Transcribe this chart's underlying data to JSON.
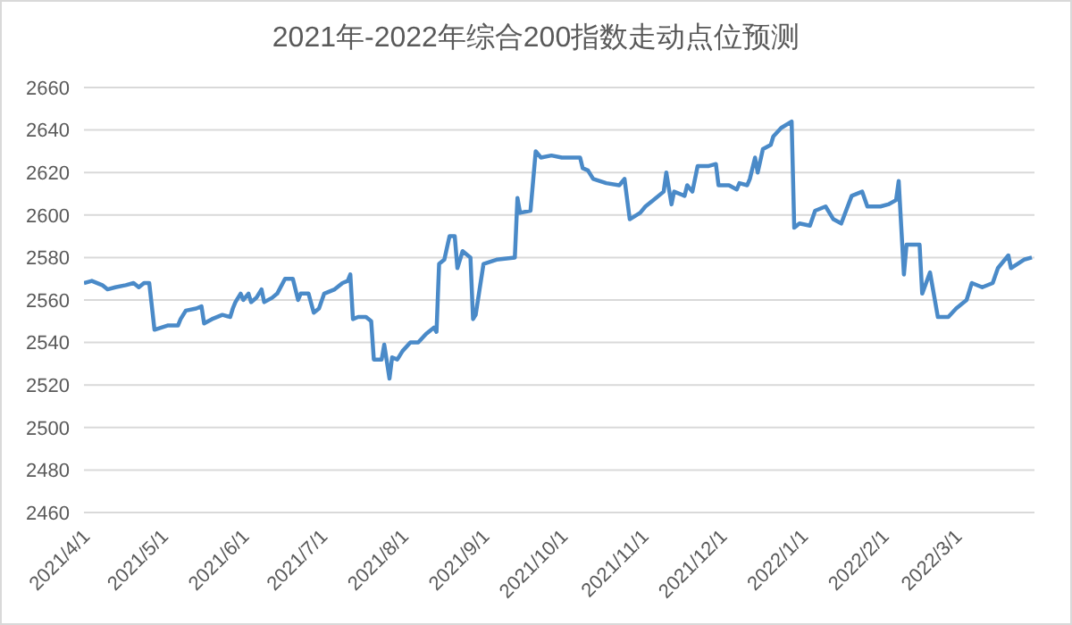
{
  "chart_data": {
    "type": "line",
    "title": "2021年-2022年综合200指数走动点位预测",
    "grid": "y",
    "xlim": [
      "2021-04-01",
      "2022-03-31"
    ],
    "xticks": [
      {
        "value": "2021-04-01",
        "label": "2021/4/1"
      },
      {
        "value": "2021-05-01",
        "label": "2021/5/1"
      },
      {
        "value": "2021-06-01",
        "label": "2021/6/1"
      },
      {
        "value": "2021-07-01",
        "label": "2021/7/1"
      },
      {
        "value": "2021-08-01",
        "label": "2021/8/1"
      },
      {
        "value": "2021-09-01",
        "label": "2021/9/1"
      },
      {
        "value": "2021-10-01",
        "label": "2021/10/1"
      },
      {
        "value": "2021-11-01",
        "label": "2021/11/1"
      },
      {
        "value": "2021-12-01",
        "label": "2021/12/1"
      },
      {
        "value": "2022-01-01",
        "label": "2022/1/1"
      },
      {
        "value": "2022-02-01",
        "label": "2022/2/1"
      },
      {
        "value": "2022-03-01",
        "label": "2022/3/1"
      }
    ],
    "ylim": [
      2460,
      2660
    ],
    "yticks": [
      2460,
      2480,
      2500,
      2520,
      2540,
      2560,
      2580,
      2600,
      2620,
      2640,
      2660
    ],
    "x": [
      "2021-04-01",
      "2021-04-04",
      "2021-04-08",
      "2021-04-10",
      "2021-04-13",
      "2021-04-17",
      "2021-04-20",
      "2021-04-22",
      "2021-04-24",
      "2021-04-26",
      "2021-04-28",
      "2021-05-03",
      "2021-05-07",
      "2021-05-08",
      "2021-05-10",
      "2021-05-14",
      "2021-05-16",
      "2021-05-17",
      "2021-05-20",
      "2021-05-24",
      "2021-05-27",
      "2021-05-28",
      "2021-05-29",
      "2021-05-31",
      "2021-06-01",
      "2021-06-03",
      "2021-06-04",
      "2021-06-06",
      "2021-06-08",
      "2021-06-09",
      "2021-06-12",
      "2021-06-14",
      "2021-06-17",
      "2021-06-20",
      "2021-06-22",
      "2021-06-23",
      "2021-06-26",
      "2021-06-28",
      "2021-06-30",
      "2021-07-02",
      "2021-07-06",
      "2021-07-09",
      "2021-07-11",
      "2021-07-12",
      "2021-07-13",
      "2021-07-15",
      "2021-07-18",
      "2021-07-20",
      "2021-07-21",
      "2021-07-24",
      "2021-07-25",
      "2021-07-27",
      "2021-07-28",
      "2021-07-30",
      "2021-08-01",
      "2021-08-04",
      "2021-08-07",
      "2021-08-10",
      "2021-08-13",
      "2021-08-14",
      "2021-08-15",
      "2021-08-17",
      "2021-08-19",
      "2021-08-21",
      "2021-08-22",
      "2021-08-24",
      "2021-08-27",
      "2021-08-28",
      "2021-08-29",
      "2021-09-01",
      "2021-09-06",
      "2021-09-13",
      "2021-09-14",
      "2021-09-15",
      "2021-09-19",
      "2021-09-21",
      "2021-09-23",
      "2021-09-27",
      "2021-10-01",
      "2021-10-08",
      "2021-10-09",
      "2021-10-11",
      "2021-10-13",
      "2021-10-18",
      "2021-10-23",
      "2021-10-25",
      "2021-10-27",
      "2021-10-31",
      "2021-11-02",
      "2021-11-05",
      "2021-11-09",
      "2021-11-10",
      "2021-11-12",
      "2021-11-13",
      "2021-11-17",
      "2021-11-18",
      "2021-11-20",
      "2021-11-22",
      "2021-11-26",
      "2021-11-29",
      "2021-11-30",
      "2021-12-04",
      "2021-12-07",
      "2021-12-08",
      "2021-12-11",
      "2021-12-12",
      "2021-12-14",
      "2021-12-15",
      "2021-12-17",
      "2021-12-20",
      "2021-12-21",
      "2021-12-24",
      "2021-12-28",
      "2021-12-29",
      "2021-12-31",
      "2022-01-04",
      "2022-01-06",
      "2022-01-10",
      "2022-01-13",
      "2022-01-16",
      "2022-01-20",
      "2022-01-24",
      "2022-01-26",
      "2022-01-31",
      "2022-02-03",
      "2022-02-06",
      "2022-02-07",
      "2022-02-09",
      "2022-02-10",
      "2022-02-15",
      "2022-02-16",
      "2022-02-19",
      "2022-02-22",
      "2022-02-26",
      "2022-03-01",
      "2022-03-05",
      "2022-03-07",
      "2022-03-11",
      "2022-03-15",
      "2022-03-17",
      "2022-03-21",
      "2022-03-22",
      "2022-03-27",
      "2022-03-30"
    ],
    "series": [
      {
        "color": "#4a8ac8",
        "values": [
          2568,
          2569,
          2567,
          2565,
          2566,
          2567,
          2568,
          2566,
          2568,
          2568,
          2546,
          2548,
          2548,
          2551,
          2555,
          2556,
          2557,
          2549,
          2551,
          2553,
          2552,
          2556,
          2559,
          2563,
          2560,
          2563,
          2559,
          2561,
          2565,
          2559,
          2561,
          2563,
          2570,
          2570,
          2560,
          2563,
          2563,
          2554,
          2556,
          2563,
          2565,
          2568,
          2569,
          2572,
          2551,
          2552,
          2552,
          2550,
          2532,
          2532,
          2539,
          2523,
          2533,
          2532,
          2536,
          2540,
          2540,
          2544,
          2547,
          2545,
          2577,
          2579,
          2590,
          2590,
          2575,
          2583,
          2580,
          2551,
          2553,
          2577,
          2579,
          2580,
          2608,
          2601,
          2602,
          2630,
          2627,
          2628,
          2627,
          2627,
          2622,
          2621,
          2617,
          2615,
          2614,
          2617,
          2598,
          2601,
          2604,
          2607,
          2611,
          2620,
          2605,
          2611,
          2609,
          2614,
          2611,
          2623,
          2623,
          2624,
          2614,
          2614,
          2612,
          2615,
          2614,
          2617,
          2627,
          2620,
          2631,
          2633,
          2637,
          2641,
          2644,
          2594,
          2596,
          2595,
          2602,
          2604,
          2598,
          2596,
          2609,
          2611,
          2604,
          2604,
          2605,
          2607,
          2616,
          2572,
          2586,
          2586,
          2563,
          2573,
          2552,
          2552,
          2556,
          2560,
          2568,
          2566,
          2568,
          2575,
          2581,
          2575,
          2579,
          2580
        ]
      }
    ]
  }
}
